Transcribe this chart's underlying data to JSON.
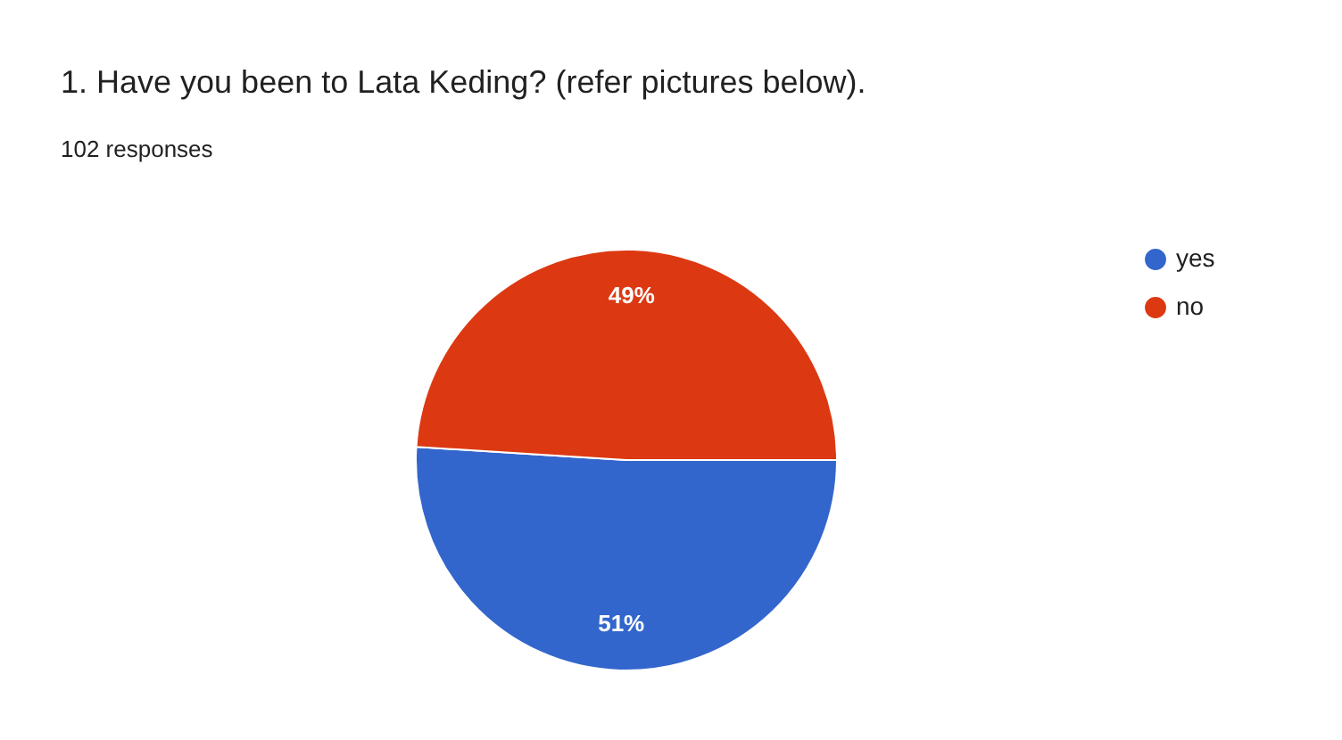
{
  "chart_data": {
    "type": "pie",
    "title": "1. Have you been to Lata Keding? (refer pictures below).",
    "subtitle": "102 responses",
    "categories": [
      "yes",
      "no"
    ],
    "values": [
      51,
      49
    ],
    "colors": [
      "#3366cc",
      "#dc3912"
    ],
    "value_labels": [
      "51%",
      "49%"
    ],
    "legend": "right"
  }
}
